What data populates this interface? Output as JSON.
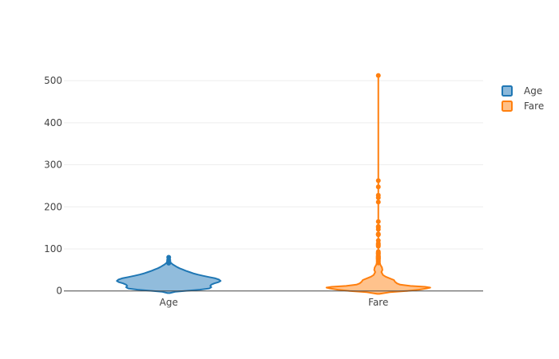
{
  "chart_data": {
    "type": "violin",
    "title": "",
    "xlabel": "",
    "ylabel": "",
    "categories": [
      "Age",
      "Fare"
    ],
    "ylim": [
      -10,
      540
    ],
    "yticks": [
      0,
      100,
      200,
      300,
      400,
      500
    ],
    "grid": true,
    "legend": {
      "position": "top-right",
      "entries": [
        "Age",
        "Fare"
      ]
    },
    "series": [
      {
        "name": "Age",
        "color": "#1f77b4",
        "fill": "#8bb8da",
        "profile": [
          [
            -5,
            0.02
          ],
          [
            -2,
            0.12
          ],
          [
            0,
            0.3
          ],
          [
            3,
            0.6
          ],
          [
            6,
            0.78
          ],
          [
            9,
            0.82
          ],
          [
            12,
            0.8
          ],
          [
            15,
            0.82
          ],
          [
            18,
            0.88
          ],
          [
            21,
            0.96
          ],
          [
            24,
            1.0
          ],
          [
            27,
            0.97
          ],
          [
            30,
            0.9
          ],
          [
            33,
            0.78
          ],
          [
            36,
            0.66
          ],
          [
            39,
            0.56
          ],
          [
            42,
            0.47
          ],
          [
            45,
            0.4
          ],
          [
            48,
            0.33
          ],
          [
            51,
            0.27
          ],
          [
            54,
            0.21
          ],
          [
            57,
            0.16
          ],
          [
            60,
            0.12
          ],
          [
            63,
            0.08
          ],
          [
            66,
            0.05
          ],
          [
            70,
            0.02
          ]
        ],
        "outliers": [
          66,
          70.5,
          71,
          74,
          80
        ]
      },
      {
        "name": "Fare",
        "color": "#ff7f0e",
        "fill": "#ffbf86",
        "profile": [
          [
            -7,
            0.02
          ],
          [
            -3,
            0.22
          ],
          [
            0,
            0.55
          ],
          [
            3,
            0.78
          ],
          [
            6,
            0.93
          ],
          [
            8,
            1.0
          ],
          [
            10,
            0.9
          ],
          [
            12,
            0.62
          ],
          [
            15,
            0.42
          ],
          [
            18,
            0.36
          ],
          [
            22,
            0.32
          ],
          [
            26,
            0.3
          ],
          [
            30,
            0.22
          ],
          [
            34,
            0.14
          ],
          [
            38,
            0.09
          ],
          [
            45,
            0.06
          ],
          [
            50,
            0.08
          ],
          [
            56,
            0.07
          ],
          [
            62,
            0.04
          ],
          [
            70,
            0.02
          ]
        ],
        "whisker_max": 512.3,
        "outliers": [
          66.6,
          69.55,
          71.28,
          73.5,
          75.25,
          76.73,
          77.29,
          78.85,
          79.2,
          79.65,
          81.86,
          82.17,
          83.16,
          86.5,
          89.1,
          90,
          91.08,
          93.5,
          106.43,
          108.9,
          110.88,
          113.28,
          120,
          133.65,
          134.5,
          135.63,
          146.52,
          151.55,
          153.46,
          164.87,
          211.34,
          221.78,
          227.53,
          247.52,
          262.38,
          512.33
        ]
      }
    ]
  }
}
